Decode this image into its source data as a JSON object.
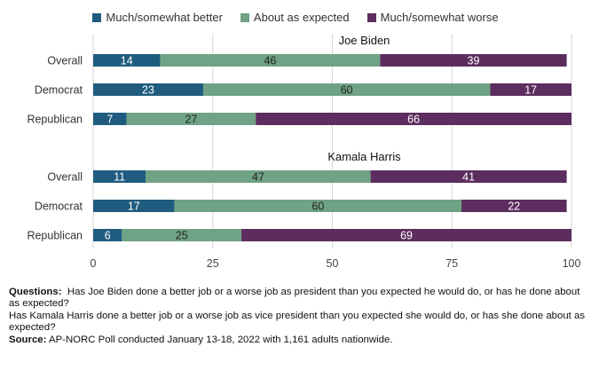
{
  "chart_data": {
    "type": "bar",
    "orientation": "horizontal",
    "stacked": true,
    "xlim": [
      0,
      100
    ],
    "xticks": [
      "0",
      "25",
      "50",
      "75",
      "100"
    ],
    "grid": true,
    "legend_position": "top",
    "colors": {
      "better": "#1f5c7f",
      "expected": "#70a285",
      "worse": "#5c2d5e"
    },
    "series": [
      {
        "key": "better",
        "name": "Much/somewhat better"
      },
      {
        "key": "expected",
        "name": "About as expected"
      },
      {
        "key": "worse",
        "name": "Much/somewhat worse"
      }
    ],
    "groups": [
      {
        "title": "Joe Biden",
        "rows": [
          {
            "label": "Overall",
            "values": [
              14,
              46,
              39
            ]
          },
          {
            "label": "Democrat",
            "values": [
              23,
              60,
              17
            ]
          },
          {
            "label": "Republican",
            "values": [
              7,
              27,
              66
            ]
          }
        ]
      },
      {
        "title": "Kamala Harris",
        "rows": [
          {
            "label": "Overall",
            "values": [
              11,
              47,
              41
            ]
          },
          {
            "label": "Democrat",
            "values": [
              17,
              60,
              22
            ]
          },
          {
            "label": "Republican",
            "values": [
              6,
              25,
              69
            ]
          }
        ]
      }
    ]
  },
  "notes": {
    "questions_label": "Questions:",
    "question_1": "Has Joe Biden done a better job or a worse job as president than you expected he would do, or has he done about as expected?",
    "question_2": "Has Kamala Harris done a better job or a worse job as vice president than you expected she would do, or has she done about as expected?",
    "source_label": "Source:",
    "source_text": "AP-NORC Poll conducted January 13-18, 2022 with 1,161 adults nationwide."
  }
}
